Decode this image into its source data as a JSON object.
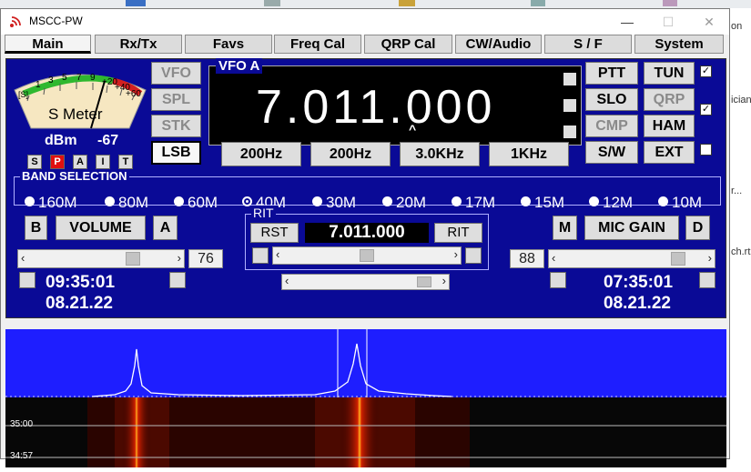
{
  "window": {
    "title": "MSCC-PW",
    "minimize_icon": "minimize-icon",
    "maximize_icon": "maximize-icon",
    "close_icon": "close-icon",
    "close_glyph": "✕",
    "min_glyph": "—",
    "max_glyph": "☐"
  },
  "side_peek": {
    "line1": "ician",
    "line2": "r...",
    "line3": "ch.rt",
    "line4": "on"
  },
  "tabs": [
    "Main",
    "Rx/Tx",
    "Favs",
    "Freq Cal",
    "QRP Cal",
    "CW/Audio",
    "S / F",
    "System"
  ],
  "meter": {
    "title": "S Meter",
    "scale": [
      "[S]",
      "1",
      "3",
      "5",
      "7",
      "9",
      "+20",
      "+40",
      "+60"
    ],
    "dbm_label": "dBm",
    "dbm_value": "-67",
    "mode_buttons": [
      "S",
      "P",
      "A",
      "I",
      "T"
    ],
    "active_mode": "P"
  },
  "left_buttons": {
    "vfo": "VFO",
    "spl": "SPL",
    "stk": "STK",
    "lsb": "LSB"
  },
  "vfo": {
    "label": "VFO A",
    "frequency": "7.011.000",
    "cursor_glyph": "^"
  },
  "right_buttons": {
    "ptt": "PTT",
    "tun": "TUN",
    "slo": "SLO",
    "qrp": "QRP",
    "cmp": "CMP",
    "ham": "HAM",
    "sw": "S/W",
    "ext": "EXT"
  },
  "checkboxes": {
    "tun_checked": "✓",
    "qrp_checked": "✓",
    "ext_checked": ""
  },
  "filters": [
    "200Hz",
    "200Hz",
    "3.0KHz",
    "1KHz"
  ],
  "band_selection": {
    "label": "BAND SELECTION",
    "bands": [
      "160M",
      "80M",
      "60M",
      "40M",
      "30M",
      "20M",
      "17M",
      "15M",
      "12M",
      "10M"
    ],
    "selected": "40M"
  },
  "volume": {
    "b_label": "B",
    "label": "VOLUME",
    "a_label": "A",
    "value": "76",
    "level_percent": 76
  },
  "mic_gain": {
    "m_label": "M",
    "label": "MIC GAIN",
    "d_label": "D",
    "value": "88",
    "level_percent": 88
  },
  "rit": {
    "label": "RIT",
    "rst": "RST",
    "frequency": "7.011.000",
    "rit_button": "RIT"
  },
  "clock_left": {
    "time": "09:35:01",
    "date": "08.21.22"
  },
  "clock_right": {
    "time": "07:35:01",
    "date": "08.21.22"
  },
  "waterfall": {
    "times": [
      "35:00",
      "34:57"
    ]
  },
  "colors": {
    "panel": "#0a0a96",
    "spectrum": "#1e1eff",
    "waterfall_signal": "#ff2a00"
  }
}
